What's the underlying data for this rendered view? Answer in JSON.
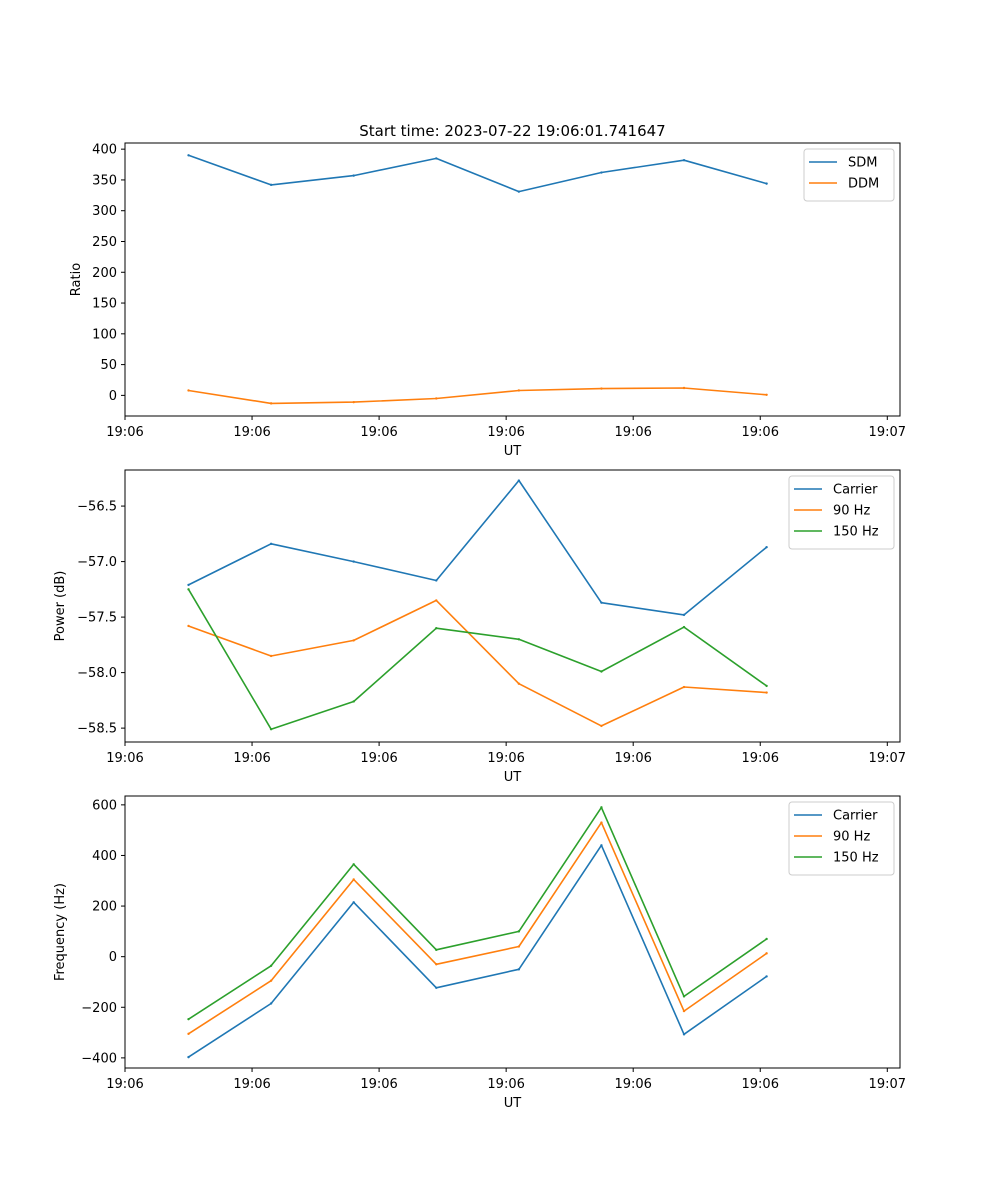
{
  "figure_title": "Start time: 2023-07-22 19:06:01.741647",
  "colors": {
    "blue": "#1f77b4",
    "orange": "#ff7f0e",
    "green": "#2ca02c"
  },
  "chart_data": [
    {
      "type": "line",
      "title": "Start time: 2023-07-22 19:06:01.741647",
      "xlabel": "UT",
      "ylabel": "Ratio",
      "xlim": [
        0,
        6.1
      ],
      "ylim": [
        -33.5,
        410
      ],
      "x": [
        0.5,
        1.15,
        1.8,
        2.45,
        3.1,
        3.75,
        4.4,
        5.05
      ],
      "x_ticks": [
        0,
        1,
        2,
        3,
        4,
        5,
        6
      ],
      "x_tick_labels": [
        "19:06",
        "19:06",
        "19:06",
        "19:06",
        "19:06",
        "19:06",
        "19:07"
      ],
      "y_ticks": [
        0,
        50,
        100,
        150,
        200,
        250,
        300,
        350,
        400
      ],
      "y_tick_labels": [
        "0",
        "50",
        "100",
        "150",
        "200",
        "250",
        "300",
        "350",
        "400"
      ],
      "legend_position": "top-right",
      "series": [
        {
          "name": "SDM",
          "color": "#1f77b4",
          "values": [
            390,
            342,
            357,
            385,
            331,
            362,
            382,
            344
          ]
        },
        {
          "name": "DDM",
          "color": "#ff7f0e",
          "values": [
            8,
            -13,
            -11,
            -5,
            8,
            11,
            12,
            1
          ]
        }
      ]
    },
    {
      "type": "line",
      "xlabel": "UT",
      "ylabel": "Power (dB)",
      "xlim": [
        0,
        6.1
      ],
      "ylim": [
        -58.625,
        -56.175
      ],
      "x": [
        0.5,
        1.15,
        1.8,
        2.45,
        3.1,
        3.75,
        4.4,
        5.05
      ],
      "x_ticks": [
        0,
        1,
        2,
        3,
        4,
        5,
        6
      ],
      "x_tick_labels": [
        "19:06",
        "19:06",
        "19:06",
        "19:06",
        "19:06",
        "19:06",
        "19:07"
      ],
      "y_ticks": [
        -58.5,
        -58.0,
        -57.5,
        -57.0,
        -56.5
      ],
      "y_tick_labels": [
        "−58.5",
        "−58.0",
        "−57.5",
        "−57.0",
        "−56.5"
      ],
      "legend_position": "top-right",
      "series": [
        {
          "name": "Carrier",
          "color": "#1f77b4",
          "values": [
            -57.21,
            -56.84,
            -57.0,
            -57.17,
            -56.27,
            -57.37,
            -57.48,
            -56.87
          ]
        },
        {
          "name": "90 Hz",
          "color": "#ff7f0e",
          "values": [
            -57.58,
            -57.85,
            -57.71,
            -57.35,
            -58.1,
            -58.48,
            -58.13,
            -58.18
          ]
        },
        {
          "name": "150 Hz",
          "color": "#2ca02c",
          "values": [
            -57.25,
            -58.51,
            -58.26,
            -57.6,
            -57.7,
            -57.99,
            -57.59,
            -58.12
          ]
        }
      ]
    },
    {
      "type": "line",
      "xlabel": "UT",
      "ylabel": "Frequency (Hz)",
      "xlim": [
        0,
        6.1
      ],
      "ylim": [
        -440,
        635
      ],
      "x": [
        0.5,
        1.15,
        1.8,
        2.45,
        3.1,
        3.75,
        4.4,
        5.05
      ],
      "x_ticks": [
        0,
        1,
        2,
        3,
        4,
        5,
        6
      ],
      "x_tick_labels": [
        "19:06",
        "19:06",
        "19:06",
        "19:06",
        "19:06",
        "19:06",
        "19:07"
      ],
      "y_ticks": [
        -400,
        -200,
        0,
        200,
        400,
        600
      ],
      "y_tick_labels": [
        "−400",
        "−200",
        "0",
        "200",
        "400",
        "600"
      ],
      "legend_position": "top-right",
      "series": [
        {
          "name": "Carrier",
          "color": "#1f77b4",
          "values": [
            -397,
            -185,
            215,
            -123,
            -50,
            440,
            -307,
            -78
          ]
        },
        {
          "name": "90 Hz",
          "color": "#ff7f0e",
          "values": [
            -305,
            -95,
            305,
            -30,
            40,
            530,
            -215,
            13
          ]
        },
        {
          "name": "150 Hz",
          "color": "#2ca02c",
          "values": [
            -247,
            -36,
            365,
            27,
            100,
            590,
            -157,
            70
          ]
        }
      ]
    }
  ]
}
